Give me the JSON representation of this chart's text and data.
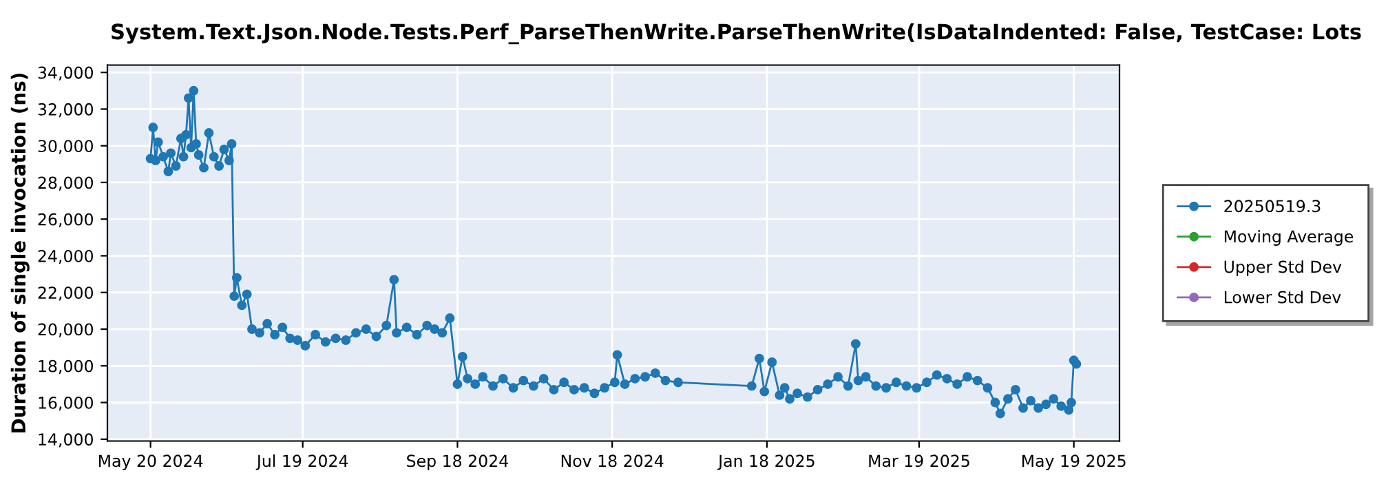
{
  "chart_data": {
    "type": "line",
    "title": "System.Text.Json.Node.Tests.Perf_ParseThenWrite.ParseThenWrite(IsDataIndented: False, TestCase: Lots",
    "ylabel": "Duration of single invocation (ns)",
    "xlim": [
      "2024-05-03",
      "2025-06-06"
    ],
    "xticks": [
      {
        "value": "2024-05-20",
        "label": "May 20 2024"
      },
      {
        "value": "2024-07-19",
        "label": "Jul 19 2024"
      },
      {
        "value": "2024-09-18",
        "label": "Sep 18 2024"
      },
      {
        "value": "2024-11-18",
        "label": "Nov 18 2024"
      },
      {
        "value": "2025-01-18",
        "label": "Jan 18 2025"
      },
      {
        "value": "2025-03-19",
        "label": "Mar 19 2025"
      },
      {
        "value": "2025-05-19",
        "label": "May 19 2025"
      }
    ],
    "ylim": [
      13900,
      34400
    ],
    "yticks": [
      {
        "value": 14000,
        "label": "14,000"
      },
      {
        "value": 16000,
        "label": "16,000"
      },
      {
        "value": 18000,
        "label": "18,000"
      },
      {
        "value": 20000,
        "label": "20,000"
      },
      {
        "value": 22000,
        "label": "22,000"
      },
      {
        "value": 24000,
        "label": "24,000"
      },
      {
        "value": 26000,
        "label": "26,000"
      },
      {
        "value": 28000,
        "label": "28,000"
      },
      {
        "value": 30000,
        "label": "30,000"
      },
      {
        "value": 32000,
        "label": "32,000"
      },
      {
        "value": 34000,
        "label": "34,000"
      }
    ],
    "grid": true,
    "legend": "right",
    "marker": "circle",
    "line_style": "solid",
    "series": [
      {
        "name": "20250519.3",
        "color": "#1f77b4",
        "x": [
          "2024-05-20",
          "2024-05-21",
          "2024-05-22",
          "2024-05-23",
          "2024-05-25",
          "2024-05-27",
          "2024-05-28",
          "2024-05-30",
          "2024-06-01",
          "2024-06-02",
          "2024-06-03",
          "2024-06-04",
          "2024-06-05",
          "2024-06-06",
          "2024-06-07",
          "2024-06-08",
          "2024-06-10",
          "2024-06-12",
          "2024-06-14",
          "2024-06-16",
          "2024-06-18",
          "2024-06-20",
          "2024-06-21",
          "2024-06-22",
          "2024-06-23",
          "2024-06-25",
          "2024-06-27",
          "2024-06-29",
          "2024-07-02",
          "2024-07-05",
          "2024-07-08",
          "2024-07-11",
          "2024-07-14",
          "2024-07-17",
          "2024-07-20",
          "2024-07-24",
          "2024-07-28",
          "2024-08-01",
          "2024-08-05",
          "2024-08-09",
          "2024-08-13",
          "2024-08-17",
          "2024-08-21",
          "2024-08-24",
          "2024-08-25",
          "2024-08-29",
          "2024-09-02",
          "2024-09-06",
          "2024-09-09",
          "2024-09-12",
          "2024-09-15",
          "2024-09-18",
          "2024-09-20",
          "2024-09-22",
          "2024-09-25",
          "2024-09-28",
          "2024-10-02",
          "2024-10-06",
          "2024-10-10",
          "2024-10-14",
          "2024-10-18",
          "2024-10-22",
          "2024-10-26",
          "2024-10-30",
          "2024-11-03",
          "2024-11-07",
          "2024-11-11",
          "2024-11-15",
          "2024-11-19",
          "2024-11-20",
          "2024-11-23",
          "2024-11-27",
          "2024-12-01",
          "2024-12-05",
          "2024-12-09",
          "2024-12-14",
          "2025-01-12",
          "2025-01-15",
          "2025-01-17",
          "2025-01-20",
          "2025-01-23",
          "2025-01-25",
          "2025-01-27",
          "2025-01-30",
          "2025-02-03",
          "2025-02-07",
          "2025-02-11",
          "2025-02-15",
          "2025-02-19",
          "2025-02-22",
          "2025-02-23",
          "2025-02-26",
          "2025-03-02",
          "2025-03-06",
          "2025-03-10",
          "2025-03-14",
          "2025-03-18",
          "2025-03-22",
          "2025-03-26",
          "2025-03-30",
          "2025-04-03",
          "2025-04-07",
          "2025-04-11",
          "2025-04-15",
          "2025-04-18",
          "2025-04-20",
          "2025-04-23",
          "2025-04-26",
          "2025-04-29",
          "2025-05-02",
          "2025-05-05",
          "2025-05-08",
          "2025-05-11",
          "2025-05-14",
          "2025-05-17",
          "2025-05-18",
          "2025-05-19",
          "2025-05-20"
        ],
        "values": [
          29300,
          31000,
          29200,
          30200,
          29400,
          28600,
          29600,
          28900,
          30400,
          29400,
          30600,
          32600,
          29900,
          33000,
          30100,
          29500,
          28800,
          30700,
          29400,
          28900,
          29800,
          29200,
          30100,
          21800,
          22800,
          21300,
          21900,
          20000,
          19800,
          20300,
          19700,
          20100,
          19500,
          19400,
          19100,
          19700,
          19300,
          19500,
          19400,
          19800,
          20000,
          19600,
          20200,
          22700,
          19800,
          20100,
          19700,
          20200,
          20000,
          19800,
          20600,
          17000,
          18500,
          17300,
          17000,
          17400,
          16900,
          17300,
          16800,
          17200,
          16900,
          17300,
          16700,
          17100,
          16700,
          16800,
          16500,
          16800,
          17100,
          18600,
          17000,
          17300,
          17400,
          17600,
          17200,
          17100,
          16900,
          18400,
          16600,
          18200,
          16400,
          16800,
          16200,
          16500,
          16300,
          16700,
          17000,
          17400,
          16900,
          19200,
          17200,
          17400,
          16900,
          16800,
          17100,
          16900,
          16800,
          17100,
          17500,
          17300,
          17000,
          17400,
          17200,
          16800,
          16000,
          15400,
          16200,
          16700,
          15700,
          16100,
          15700,
          15900,
          16200,
          15800,
          15600,
          16000,
          18300,
          18100
        ]
      },
      {
        "name": "Moving Average",
        "color": "#2ca02c"
      },
      {
        "name": "Upper Std Dev",
        "color": "#d62728"
      },
      {
        "name": "Lower Std Dev",
        "color": "#9467bd"
      }
    ]
  }
}
